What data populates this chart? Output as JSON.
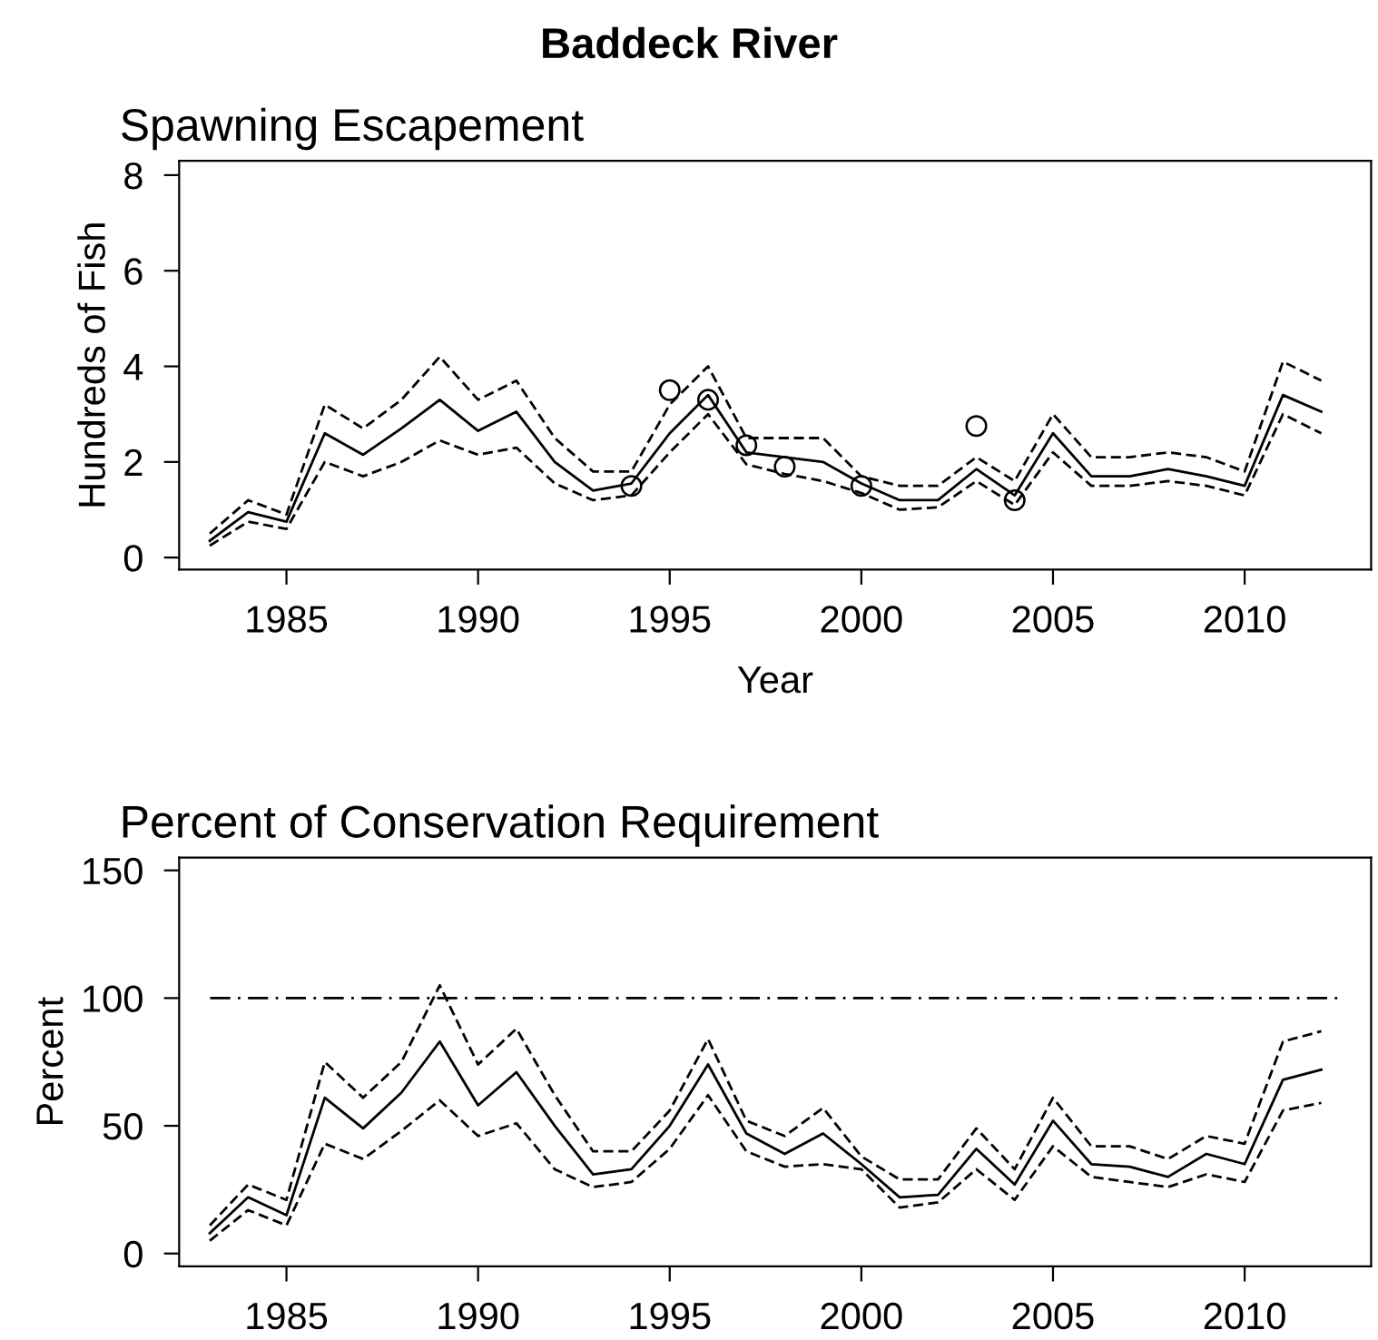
{
  "chart_data": [
    {
      "type": "line",
      "title": "Baddeck River",
      "subtitle": "Spawning Escapement",
      "xlabel": "Year",
      "ylabel": "Hundreds of Fish",
      "x": [
        1983,
        1984,
        1985,
        1986,
        1987,
        1988,
        1989,
        1990,
        1991,
        1992,
        1993,
        1994,
        1995,
        1996,
        1997,
        1998,
        1999,
        2000,
        2001,
        2002,
        2003,
        2004,
        2005,
        2006,
        2007,
        2008,
        2009,
        2010,
        2011,
        2012
      ],
      "series": [
        {
          "color": "#000000",
          "line_style": "solid",
          "values": [
            0.35,
            0.95,
            0.75,
            2.6,
            2.15,
            2.7,
            3.3,
            2.65,
            3.05,
            2.0,
            1.4,
            1.55,
            2.6,
            3.4,
            2.2,
            2.1,
            2.0,
            1.55,
            1.2,
            1.2,
            1.85,
            1.3,
            2.6,
            1.7,
            1.7,
            1.85,
            1.7,
            1.5,
            3.4,
            3.05
          ]
        },
        {
          "color": "#000000",
          "line_style": "dashed",
          "values": [
            0.5,
            1.2,
            0.9,
            3.2,
            2.7,
            3.3,
            4.2,
            3.3,
            3.7,
            2.5,
            1.8,
            1.8,
            3.2,
            4.0,
            2.5,
            2.5,
            2.5,
            1.7,
            1.5,
            1.5,
            2.1,
            1.6,
            3.0,
            2.1,
            2.1,
            2.2,
            2.1,
            1.8,
            4.1,
            3.7
          ]
        },
        {
          "color": "#000000",
          "line_style": "dashed",
          "values": [
            0.25,
            0.75,
            0.6,
            2.0,
            1.7,
            2.0,
            2.45,
            2.15,
            2.3,
            1.55,
            1.2,
            1.3,
            2.2,
            3.0,
            1.95,
            1.75,
            1.6,
            1.35,
            1.0,
            1.05,
            1.6,
            1.1,
            2.2,
            1.5,
            1.5,
            1.6,
            1.5,
            1.3,
            3.0,
            2.6
          ]
        },
        {
          "type": "scatter",
          "color": "#000000",
          "marker": "circle",
          "x": [
            1994,
            1995,
            1996,
            1997,
            1998,
            2000,
            2003,
            2004
          ],
          "values": [
            1.5,
            3.5,
            3.3,
            2.35,
            1.9,
            1.5,
            2.75,
            1.2
          ]
        }
      ],
      "xlim": [
        1982.2,
        2013.3
      ],
      "ylim": [
        -0.25,
        8.3
      ],
      "xticks": [
        1985,
        1990,
        1995,
        2000,
        2005,
        2010
      ],
      "yticks": [
        0,
        2,
        4,
        6,
        8
      ],
      "grid": false,
      "legend": false
    },
    {
      "type": "line",
      "subtitle": "Percent of Conservation Requirement",
      "ylabel": "Percent",
      "x": [
        1983,
        1984,
        1985,
        1986,
        1987,
        1988,
        1989,
        1990,
        1991,
        1992,
        1993,
        1994,
        1995,
        1996,
        1997,
        1998,
        1999,
        2000,
        2001,
        2002,
        2003,
        2004,
        2005,
        2006,
        2007,
        2008,
        2009,
        2010,
        2011,
        2012
      ],
      "series": [
        {
          "color": "#000000",
          "line_style": "solid",
          "values": [
            8,
            22,
            15,
            61,
            49,
            63,
            83,
            58,
            71,
            50,
            31,
            33,
            50,
            74,
            47,
            39,
            47,
            35,
            22,
            23,
            41,
            27,
            52,
            35,
            34,
            30,
            39,
            35,
            68,
            72
          ]
        },
        {
          "color": "#000000",
          "line_style": "dashed",
          "values": [
            11,
            27,
            21,
            75,
            61,
            75,
            105,
            74,
            88,
            62,
            40,
            40,
            56,
            84,
            52,
            46,
            57,
            38,
            29,
            29,
            49,
            33,
            61,
            42,
            42,
            37,
            46,
            43,
            83,
            87
          ]
        },
        {
          "color": "#000000",
          "line_style": "dashed",
          "values": [
            5,
            17,
            11,
            43,
            37,
            48,
            60,
            46,
            51,
            33,
            26,
            28,
            41,
            62,
            40,
            34,
            35,
            33,
            18,
            20,
            33,
            21,
            42,
            30,
            28,
            26,
            31,
            28,
            56,
            59
          ]
        }
      ],
      "ref_lines": [
        {
          "axis": "y",
          "value": 100,
          "line_style": "dashdot",
          "color": "#000000"
        }
      ],
      "xlim": [
        1982.2,
        2013.3
      ],
      "ylim": [
        -5,
        155
      ],
      "xticks": [
        1985,
        1990,
        1995,
        2000,
        2005,
        2010
      ],
      "yticks": [
        0,
        50,
        100,
        150
      ],
      "grid": false,
      "legend": false
    }
  ]
}
